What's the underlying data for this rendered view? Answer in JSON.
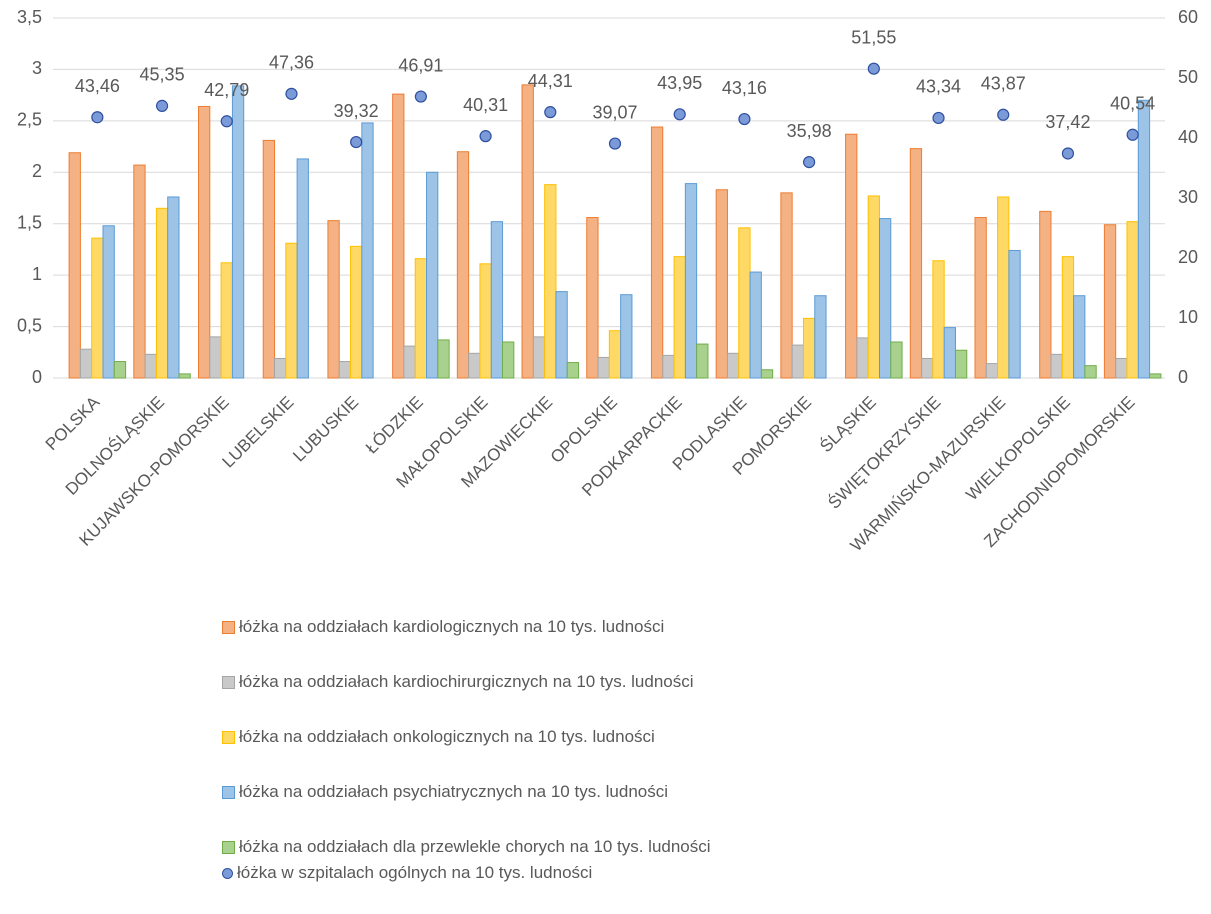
{
  "chart_data": {
    "type": "bar",
    "categories": [
      "POLSKA",
      "DOLNOŚLĄSKIE",
      "KUJAWSKO-POMORSKIE",
      "LUBELSKIE",
      "LUBUSKIE",
      "ŁÓDZKIE",
      "MAŁOPOLSKIE",
      "MAZOWIECKIE",
      "OPOLSKIE",
      "PODKARPACKIE",
      "PODLASKIE",
      "POMORSKIE",
      "ŚLĄSKIE",
      "ŚWIĘTOKRZYSKIE",
      "WARMIŃSKO-MAZURSKIE",
      "WIELKOPOLSKIE",
      "ZACHODNIOPOMORSKIE"
    ],
    "series": [
      {
        "name": "łóżka na oddziałach kardiologicznych na 10 tys. ludności",
        "color": "#f4b183",
        "stroke": "#ed7d31",
        "values": [
          2.19,
          2.07,
          2.64,
          2.31,
          1.53,
          2.76,
          2.2,
          2.85,
          1.56,
          2.44,
          1.83,
          1.8,
          2.37,
          2.23,
          1.56,
          1.62,
          1.49
        ]
      },
      {
        "name": "łóżka na oddziałach kardiochirurgicznych na 10 tys. ludności",
        "color": "#c9c9c9",
        "stroke": "#a5a5a5",
        "values": [
          0.28,
          0.23,
          0.4,
          0.19,
          0.16,
          0.31,
          0.24,
          0.4,
          0.2,
          0.22,
          0.24,
          0.32,
          0.39,
          0.19,
          0.14,
          0.23,
          0.19
        ]
      },
      {
        "name": "łóżka na oddziałach onkologicznych na 10 tys. ludności",
        "color": "#ffd966",
        "stroke": "#ffc000",
        "values": [
          1.36,
          1.65,
          1.12,
          1.31,
          1.28,
          1.16,
          1.11,
          1.88,
          0.46,
          1.18,
          1.46,
          0.58,
          1.77,
          1.14,
          1.76,
          1.18,
          1.52
        ]
      },
      {
        "name": "łóżka na oddziałach psychiatrycznych na 10 tys. ludności",
        "color": "#9dc3e6",
        "stroke": "#5b9bd5",
        "values": [
          1.48,
          1.76,
          2.84,
          2.13,
          2.48,
          2.0,
          1.52,
          0.84,
          0.81,
          1.89,
          1.03,
          0.8,
          1.55,
          0.49,
          1.24,
          0.8,
          2.7
        ]
      },
      {
        "name": "łóżka na oddziałach dla przewlekle chorych na 10 tys. ludności",
        "color": "#a9d18e",
        "stroke": "#70ad47",
        "values": [
          0.16,
          0.04,
          0,
          0,
          0,
          0.37,
          0.35,
          0.15,
          0,
          0.33,
          0.08,
          0,
          0.35,
          0.27,
          0,
          0.12,
          0.04
        ]
      },
      {
        "name": "łóżka w szpitalach ogólnych na 10 tys. ludności",
        "type": "scatter",
        "axis": "y2",
        "color": "#7b9bd8",
        "stroke": "#2f4f9f",
        "values": [
          43.46,
          45.35,
          42.79,
          47.36,
          39.32,
          46.91,
          40.31,
          44.31,
          39.07,
          43.95,
          43.16,
          35.98,
          51.55,
          43.34,
          43.87,
          37.42,
          40.54
        ],
        "value_labels": [
          "43,46",
          "45,35",
          "42,79",
          "47,36",
          "39,32",
          "46,91",
          "40,31",
          "44,31",
          "39,07",
          "43,95",
          "43,16",
          "35,98",
          "51,55",
          "43,34",
          "43,87",
          "37,42",
          "40,54"
        ]
      }
    ],
    "ylim": [
      0,
      3.5
    ],
    "yticks": [
      0,
      {
        "value": 0.5,
        "label": "0,5"
      },
      1,
      {
        "value": 1.5,
        "label": "1,5"
      },
      2,
      {
        "value": 2.5,
        "label": "2,5"
      },
      3,
      {
        "value": 3.5,
        "label": "3,5"
      }
    ],
    "y2lim": [
      0,
      60
    ],
    "y2ticks": [
      0,
      10,
      20,
      30,
      40,
      50,
      60
    ],
    "grid": true,
    "legend": "bottom"
  }
}
